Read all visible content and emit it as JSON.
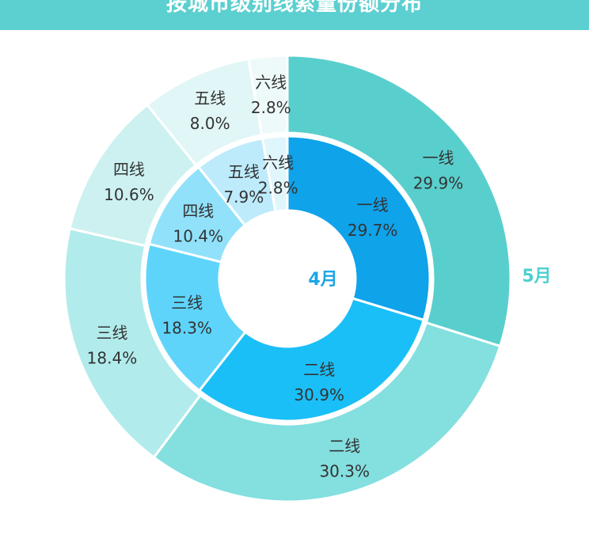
{
  "header": {
    "title": "按城市级别线索量份额分布"
  },
  "colors": {
    "header_bg": "#5ccfd0",
    "separator": "#ffffff",
    "inner_label": "#1aa6e6",
    "outer_label": "#4fcfd0"
  },
  "chart_data": {
    "type": "pie",
    "subtype": "nested-donut",
    "series": [
      {
        "name": "4月",
        "ring": "inner",
        "values": [
          29.7,
          30.9,
          18.3,
          10.4,
          7.9,
          2.8
        ],
        "labels": [
          "一线",
          "二线",
          "三线",
          "四线",
          "五线",
          "六线"
        ],
        "value_labels": [
          "29.7%",
          "30.9%",
          "18.3%",
          "10.4%",
          "7.9%",
          "2.8%"
        ],
        "colors": [
          "#0fa3ea",
          "#1abff7",
          "#5ed4fb",
          "#91e1fb",
          "#bdebfc",
          "#e0f6fd"
        ]
      },
      {
        "name": "5月",
        "ring": "outer",
        "values": [
          29.9,
          30.3,
          18.4,
          10.6,
          8.0,
          2.8
        ],
        "labels": [
          "一线",
          "二线",
          "三线",
          "四线",
          "五线",
          "六线"
        ],
        "value_labels": [
          "29.9%",
          "30.3%",
          "18.4%",
          "10.6%",
          "8.0%",
          "2.8%"
        ],
        "colors": [
          "#59cfcd",
          "#84dfdf",
          "#b2ebeb",
          "#cdf1f1",
          "#e1f6f6",
          "#eefafa"
        ]
      }
    ],
    "direction": "clockwise from top",
    "legend": "none"
  }
}
